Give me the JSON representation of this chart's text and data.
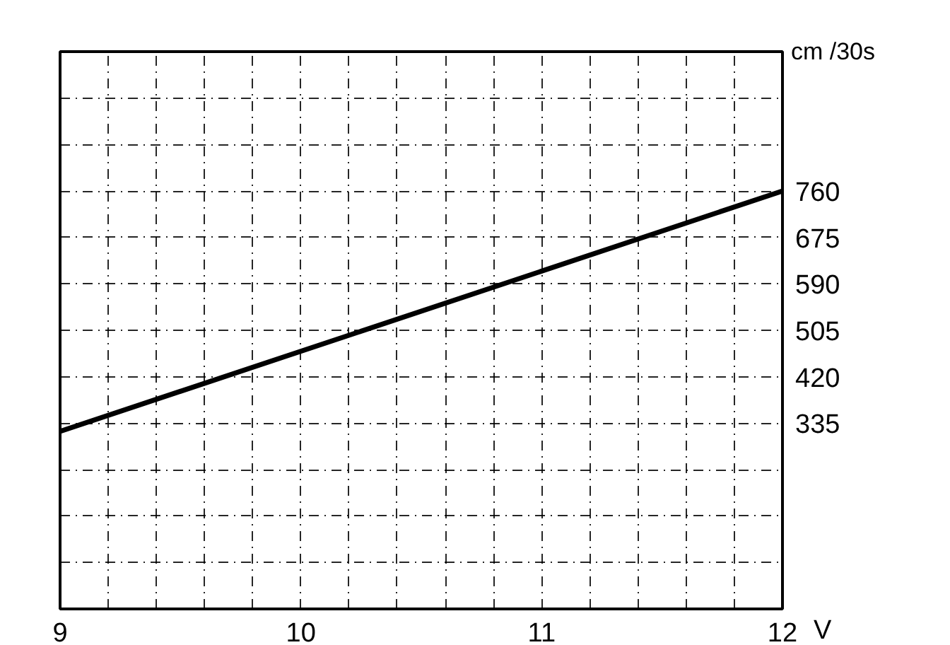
{
  "chart_data": {
    "type": "line",
    "xlabel": "V",
    "ylabel": "cm /30s",
    "x": [
      9,
      12
    ],
    "series": [
      {
        "color": "#000000",
        "values": [
          320,
          760
        ]
      }
    ],
    "xlim": [
      9,
      12
    ],
    "ylim": [
      -5,
      1015
    ],
    "xticks": [
      9,
      {
        "value": 9.2,
        "label": null
      },
      {
        "value": 9.4,
        "label": null
      },
      {
        "value": 9.6,
        "label": null
      },
      {
        "value": 9.8,
        "label": null
      },
      10,
      {
        "value": 10.2,
        "label": null
      },
      {
        "value": 10.4,
        "label": null
      },
      {
        "value": 10.6,
        "label": null
      },
      {
        "value": 10.8,
        "label": null
      },
      11,
      {
        "value": 11.2,
        "label": null
      },
      {
        "value": 11.4,
        "label": null
      },
      {
        "value": 11.6,
        "label": null
      },
      {
        "value": 11.8,
        "label": null
      },
      12
    ],
    "yticks": [
      {
        "value": 80,
        "label": null
      },
      {
        "value": 165,
        "label": null
      },
      {
        "value": 250,
        "label": null
      },
      335,
      420,
      505,
      590,
      675,
      760,
      {
        "value": 845,
        "label": null
      },
      {
        "value": 930,
        "label": null
      }
    ],
    "grid": true,
    "line_style": "solid",
    "marker": "none"
  }
}
